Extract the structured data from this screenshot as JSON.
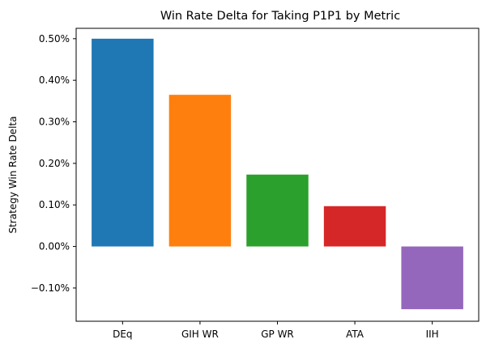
{
  "chart_data": {
    "type": "bar",
    "title": "Win Rate Delta for Taking P1P1 by Metric",
    "xlabel": "",
    "ylabel": "Strategy Win Rate Delta",
    "categories": [
      "DEq",
      "GIH WR",
      "GP WR",
      "ATA",
      "IIH"
    ],
    "values": [
      0.5,
      0.365,
      0.173,
      0.097,
      -0.151
    ],
    "colors": [
      "#1f77b4",
      "#ff7f0e",
      "#2ca02c",
      "#d62728",
      "#9467bd"
    ],
    "ylim": [
      -0.18,
      0.525
    ],
    "yticks": [
      -0.1,
      0.0,
      0.1,
      0.2,
      0.3,
      0.4,
      0.5
    ],
    "ytick_labels": [
      "−0.10%",
      "0.00%",
      "0.10%",
      "0.20%",
      "0.30%",
      "0.40%",
      "0.50%"
    ],
    "grid": false,
    "legend": "none"
  }
}
